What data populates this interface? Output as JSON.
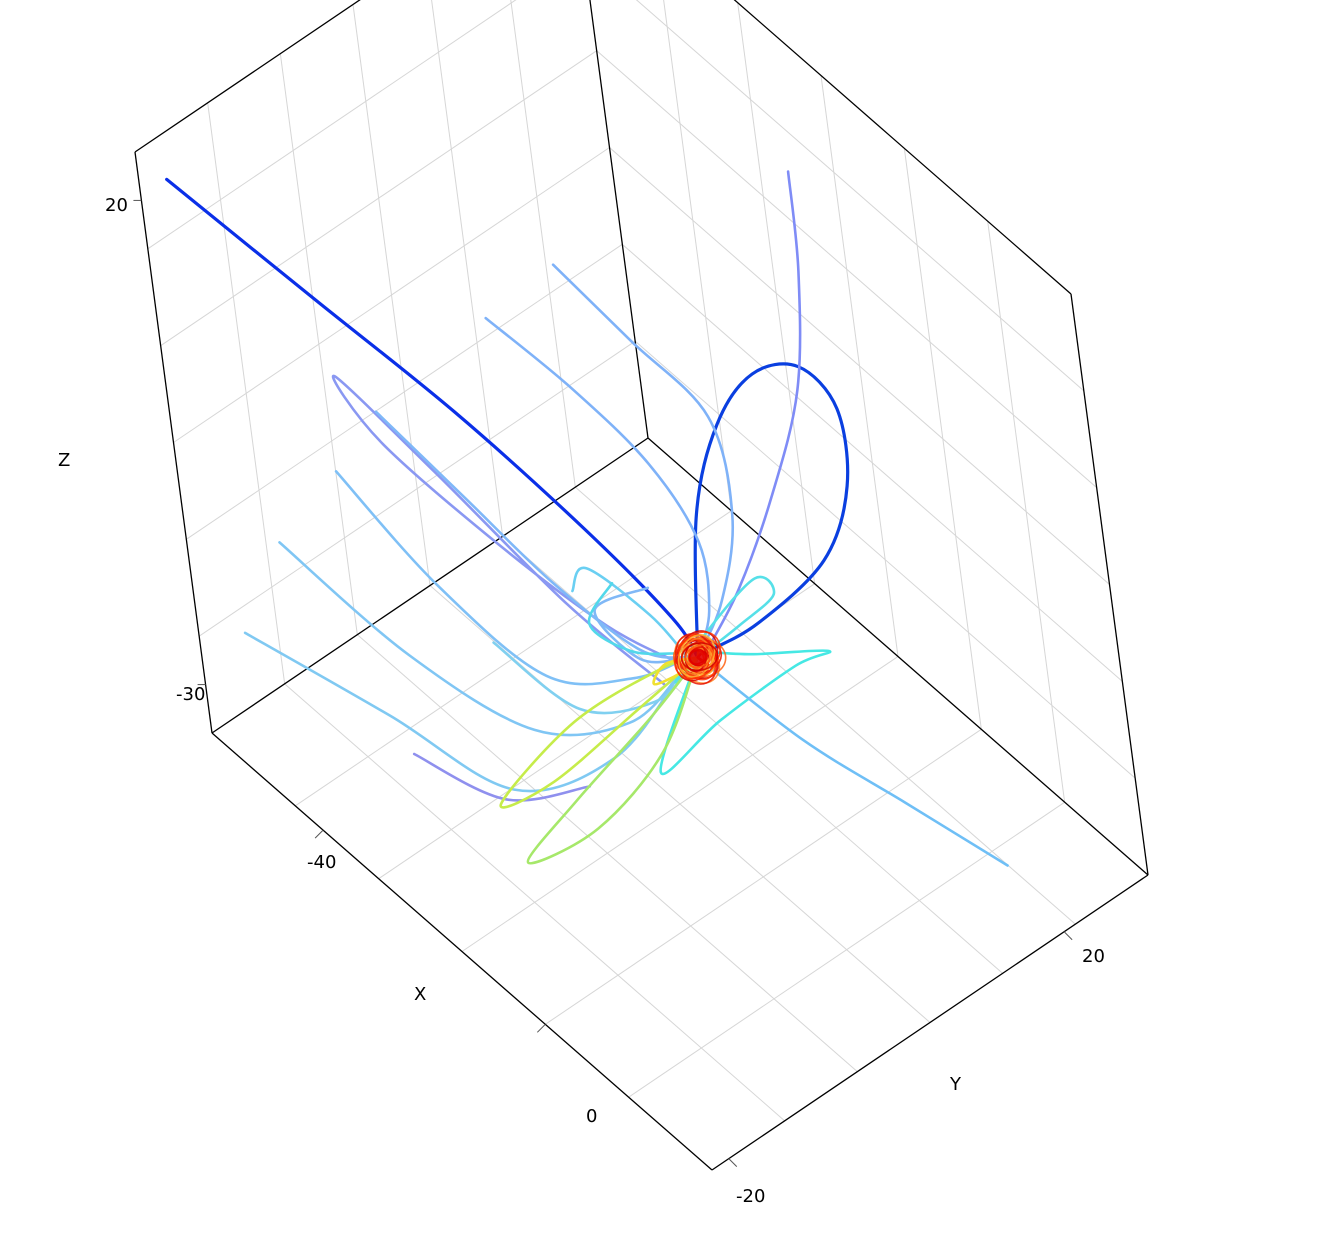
{
  "chart_data": {
    "type": "line",
    "subtype": "3d-field-lines",
    "title": "",
    "xlabel": "X",
    "ylabel": "Y",
    "zlabel": "Z",
    "x_ticks": [
      "-40",
      "0"
    ],
    "y_ticks": [
      "-20",
      "20"
    ],
    "z_ticks": [
      "20",
      "-30"
    ],
    "grid": true,
    "legend": "none",
    "colormap": "jet",
    "center_color": "#e00000",
    "series": [
      {
        "id": "L01",
        "color": "#0a2fe8",
        "points": [
          [
            -58,
            -20,
            22
          ],
          [
            -42,
            -14,
            14
          ],
          [
            -28,
            -8,
            6
          ],
          [
            -14,
            -3,
            -2
          ],
          [
            -4,
            0,
            -8
          ],
          [
            0,
            0,
            -10
          ]
        ]
      },
      {
        "id": "L02",
        "color": "#0a3fe0",
        "points": [
          [
            0,
            0,
            -10
          ],
          [
            -2,
            3,
            2
          ],
          [
            -1,
            6,
            10
          ],
          [
            2,
            9,
            15
          ],
          [
            6,
            12,
            16
          ],
          [
            9,
            14,
            12
          ],
          [
            9,
            14,
            4
          ],
          [
            6,
            12,
            -4
          ],
          [
            2,
            6,
            -9
          ],
          [
            0,
            1,
            -10
          ]
        ]
      },
      {
        "id": "L03",
        "color": "#7f8cf6",
        "points": [
          [
            -15,
            25,
            18
          ],
          [
            -10,
            22,
            12
          ],
          [
            -6,
            18,
            4
          ],
          [
            -3,
            12,
            -2
          ],
          [
            -1,
            6,
            -7
          ],
          [
            0,
            1,
            -10
          ]
        ]
      },
      {
        "id": "L04",
        "color": "#7fb2f8",
        "points": [
          [
            -30,
            6,
            12
          ],
          [
            -20,
            8,
            8
          ],
          [
            -10,
            10,
            4
          ],
          [
            -4,
            8,
            -2
          ],
          [
            -1,
            4,
            -7
          ],
          [
            0,
            0,
            -10
          ]
        ]
      },
      {
        "id": "L05",
        "color": "#7fb2f8",
        "points": [
          [
            -34,
            0,
            8
          ],
          [
            -24,
            3,
            4
          ],
          [
            -14,
            5,
            0
          ],
          [
            -6,
            5,
            -4
          ],
          [
            -2,
            3,
            -8
          ],
          [
            0,
            0,
            -10
          ]
        ]
      },
      {
        "id": "L06",
        "color": "#8a98f2",
        "points": [
          [
            -2,
            -3,
            -12
          ],
          [
            -14,
            -6,
            -8
          ],
          [
            -30,
            -10,
            0
          ],
          [
            -44,
            -12,
            4
          ],
          [
            -40,
            -10,
            -2
          ],
          [
            -26,
            -6,
            -8
          ],
          [
            -12,
            -3,
            -11
          ],
          [
            -2,
            -1,
            -11
          ]
        ]
      },
      {
        "id": "L07",
        "color": "#7fb8f8",
        "points": [
          [
            -44,
            -8,
            -2
          ],
          [
            -32,
            -6,
            -6
          ],
          [
            -20,
            -4,
            -10
          ],
          [
            -8,
            -2,
            -12
          ],
          [
            -2,
            0,
            -11
          ]
        ]
      },
      {
        "id": "L08",
        "color": "#7fc0f6",
        "points": [
          [
            -50,
            -10,
            -10
          ],
          [
            -36,
            -8,
            -16
          ],
          [
            -22,
            -5,
            -20
          ],
          [
            -10,
            -2,
            -16
          ],
          [
            -2,
            0,
            -11
          ]
        ]
      },
      {
        "id": "L09",
        "color": "#80c6f4",
        "points": [
          [
            -56,
            -14,
            -18
          ],
          [
            -40,
            -10,
            -24
          ],
          [
            -24,
            -6,
            -26
          ],
          [
            -10,
            -3,
            -20
          ],
          [
            -2,
            -1,
            -12
          ]
        ]
      },
      {
        "id": "L10",
        "color": "#80c9f2",
        "points": [
          [
            -58,
            -18,
            -26
          ],
          [
            -42,
            -12,
            -30
          ],
          [
            -26,
            -8,
            -32
          ],
          [
            -12,
            -4,
            -24
          ],
          [
            -2,
            -1,
            -12
          ]
        ]
      },
      {
        "id": "L11",
        "color": "#8f90ee",
        "points": [
          [
            -38,
            -12,
            -32
          ],
          [
            -28,
            -8,
            -34
          ],
          [
            -18,
            -4,
            -30
          ]
        ]
      },
      {
        "id": "L12",
        "color": "#80d0f0",
        "points": [
          [
            -30,
            -6,
            -20
          ],
          [
            -18,
            -4,
            -22
          ],
          [
            -8,
            -1,
            -18
          ],
          [
            -2,
            0,
            -12
          ]
        ]
      },
      {
        "id": "L13",
        "color": "#6acff2",
        "points": [
          [
            -20,
            -2,
            -12
          ],
          [
            -24,
            2,
            -14
          ],
          [
            -16,
            4,
            -16
          ],
          [
            -6,
            2,
            -14
          ],
          [
            -1,
            0,
            -11
          ]
        ]
      },
      {
        "id": "L14",
        "color": "#80b8f6",
        "points": [
          [
            -12,
            2,
            -10
          ],
          [
            -16,
            -2,
            -12
          ],
          [
            -8,
            -2,
            -13
          ],
          [
            -2,
            0,
            -11
          ]
        ]
      },
      {
        "id": "L15",
        "color": "#56e0e8",
        "points": [
          [
            0,
            0,
            -10
          ],
          [
            6,
            -6,
            -6
          ],
          [
            10,
            -4,
            0
          ],
          [
            10,
            2,
            2
          ],
          [
            6,
            6,
            -4
          ],
          [
            2,
            4,
            -8
          ],
          [
            0,
            1,
            -10
          ]
        ]
      },
      {
        "id": "L16",
        "color": "#46e8e4",
        "points": [
          [
            0,
            0,
            -10
          ],
          [
            8,
            -10,
            -12
          ],
          [
            14,
            -6,
            -6
          ],
          [
            16,
            2,
            -4
          ],
          [
            12,
            8,
            -8
          ],
          [
            4,
            4,
            -10
          ],
          [
            0,
            1,
            -10
          ]
        ]
      },
      {
        "id": "L17",
        "color": "#52d8ea",
        "points": [
          [
            -8,
            -4,
            -4
          ],
          [
            -10,
            -6,
            -8
          ],
          [
            -6,
            -4,
            -10
          ],
          [
            -2,
            -1,
            -10
          ]
        ]
      },
      {
        "id": "L18",
        "color": "#6fbff6",
        "points": [
          [
            0,
            0,
            -10
          ],
          [
            8,
            6,
            -18
          ],
          [
            16,
            12,
            -24
          ],
          [
            24,
            18,
            -30
          ]
        ]
      },
      {
        "id": "L19",
        "color": "#a6e86a",
        "points": [
          [
            0,
            0,
            -10
          ],
          [
            -4,
            -3,
            -20
          ],
          [
            -10,
            -8,
            -28
          ],
          [
            -14,
            -14,
            -30
          ],
          [
            -10,
            -10,
            -24
          ],
          [
            -4,
            -4,
            -16
          ],
          [
            0,
            0,
            -10
          ]
        ]
      },
      {
        "id": "L20",
        "color": "#c6ec4a",
        "points": [
          [
            0,
            0,
            -10
          ],
          [
            -6,
            -4,
            -16
          ],
          [
            -14,
            -10,
            -24
          ],
          [
            -18,
            -14,
            -26
          ],
          [
            -12,
            -8,
            -18
          ],
          [
            -4,
            -2,
            -12
          ],
          [
            0,
            0,
            -10
          ]
        ]
      },
      {
        "id": "L21",
        "color": "#f0e030",
        "points": [
          [
            0,
            0,
            -10
          ],
          [
            -2,
            -1,
            -12
          ],
          [
            -4,
            -3,
            -13
          ],
          [
            -3,
            -2,
            -11
          ],
          [
            0,
            0,
            -10
          ]
        ]
      },
      {
        "id": "L22",
        "color": "#f4a020",
        "points": [
          [
            0,
            0,
            -10
          ],
          [
            1,
            0,
            -8
          ],
          [
            2,
            1,
            -9
          ],
          [
            1,
            1,
            -11
          ],
          [
            0,
            0,
            -10
          ]
        ]
      },
      {
        "id": "L23",
        "color": "#e83010",
        "points": [
          [
            0,
            0,
            -10
          ],
          [
            0.6,
            0.3,
            -9.4
          ],
          [
            0.8,
            0.6,
            -10
          ],
          [
            0.3,
            0.5,
            -10.6
          ],
          [
            0,
            0,
            -10
          ]
        ]
      }
    ]
  }
}
